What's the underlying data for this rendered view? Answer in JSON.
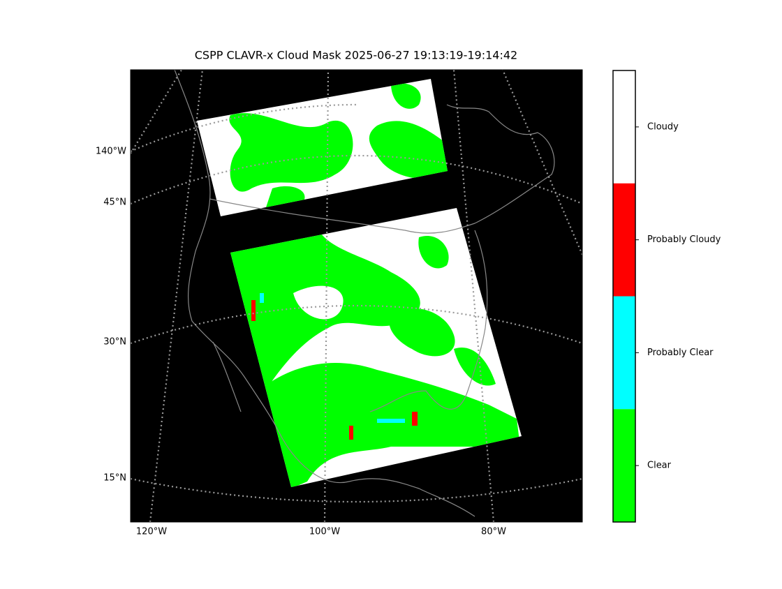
{
  "title": "CSPP CLAVR-x Cloud Mask 2025-06-27 19:13:19-19:14:42",
  "longitude_labels": [
    "140°W",
    "120°W",
    "100°W",
    "80°W"
  ],
  "latitude_labels": [
    "45°N",
    "30°N",
    "15°N"
  ],
  "colorbar": [
    {
      "label": "Cloudy",
      "color": "#ffffff"
    },
    {
      "label": "Probably Cloudy",
      "color": "#ff0000"
    },
    {
      "label": "Probably Clear",
      "color": "#00ffff"
    },
    {
      "label": "Clear",
      "color": "#00ff00"
    }
  ]
}
